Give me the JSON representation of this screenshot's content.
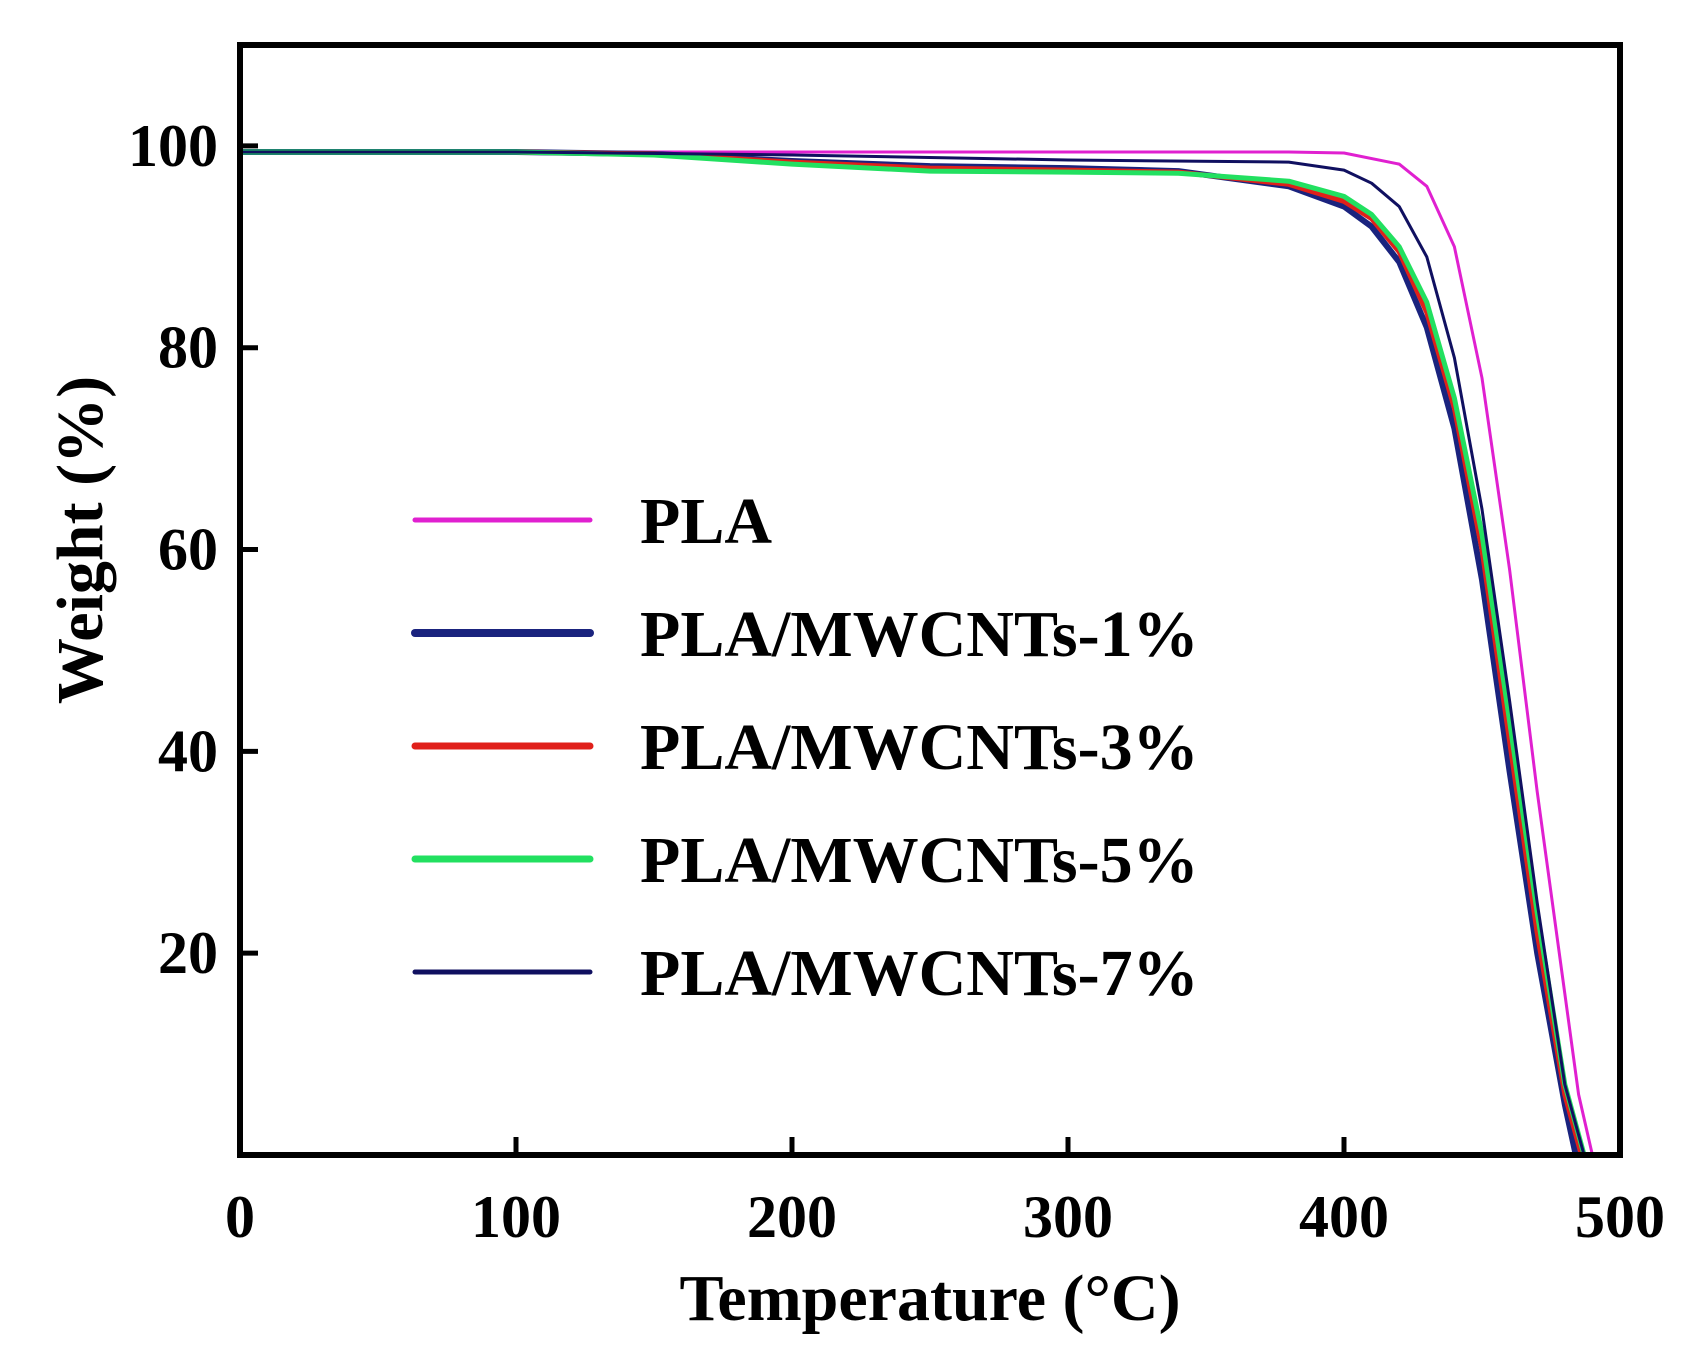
{
  "chart_data": {
    "type": "line",
    "title": "",
    "xlabel": "Temperature (°C)",
    "ylabel": "Weight (%)",
    "xlim": [
      0,
      500
    ],
    "ylim": [
      0,
      110
    ],
    "xticks": [
      0,
      100,
      200,
      300,
      400,
      500
    ],
    "xtick_labels": [
      "0",
      "100",
      "200",
      "300",
      "400",
      "500"
    ],
    "yticks": [
      20,
      40,
      60,
      80,
      100
    ],
    "ytick_labels": [
      "20",
      "40",
      "60",
      "80",
      "100"
    ],
    "grid": false,
    "legend_position": "center-left",
    "series": [
      {
        "name": "PLA",
        "color": "#e020d0",
        "width": 3,
        "x": [
          0,
          100,
          200,
          300,
          380,
          400,
          420,
          430,
          440,
          450,
          460,
          470,
          480,
          485,
          490
        ],
        "y": [
          99.4,
          99.4,
          99.4,
          99.4,
          99.4,
          99.3,
          98.2,
          96.0,
          90.0,
          77.0,
          58.0,
          36.0,
          16.0,
          6.0,
          0
        ]
      },
      {
        "name": "PLA/MWCNTs-1%",
        "color": "#1a237e",
        "width": 6,
        "x": [
          0,
          100,
          150,
          200,
          250,
          300,
          340,
          380,
          400,
          410,
          420,
          430,
          440,
          450,
          460,
          470,
          480,
          484
        ],
        "y": [
          99.4,
          99.4,
          99.2,
          98.5,
          98.0,
          97.8,
          97.5,
          96.0,
          94.0,
          92.0,
          88.5,
          82.0,
          72.0,
          57.0,
          38.0,
          20.0,
          5.0,
          0
        ]
      },
      {
        "name": "PLA/MWCNTs-3%",
        "color": "#e0201a",
        "width": 5,
        "x": [
          0,
          100,
          150,
          200,
          250,
          300,
          340,
          380,
          400,
          410,
          420,
          430,
          440,
          450,
          460,
          470,
          480,
          486
        ],
        "y": [
          99.4,
          99.4,
          99.2,
          98.4,
          97.8,
          97.6,
          97.4,
          96.2,
          94.5,
          92.8,
          89.5,
          83.5,
          74.0,
          60.0,
          41.0,
          22.0,
          6.0,
          0
        ]
      },
      {
        "name": "PLA/MWCNTs-5%",
        "color": "#22e060",
        "width": 5,
        "x": [
          0,
          100,
          150,
          200,
          250,
          300,
          340,
          380,
          400,
          410,
          420,
          430,
          440,
          450,
          460,
          470,
          480,
          487
        ],
        "y": [
          99.4,
          99.4,
          99.1,
          98.2,
          97.5,
          97.4,
          97.3,
          96.5,
          95.0,
          93.2,
          90.0,
          84.5,
          75.0,
          61.5,
          43.0,
          24.0,
          7.0,
          0
        ]
      },
      {
        "name": "PLA/MWCNTs-7%",
        "color": "#101060",
        "width": 3,
        "x": [
          0,
          100,
          200,
          300,
          380,
          400,
          410,
          420,
          430,
          440,
          450,
          460,
          470,
          480,
          487
        ],
        "y": [
          99.4,
          99.4,
          99.1,
          98.6,
          98.4,
          97.6,
          96.3,
          94.0,
          89.0,
          79.0,
          64.0,
          45.0,
          25.0,
          7.0,
          0
        ]
      }
    ]
  }
}
